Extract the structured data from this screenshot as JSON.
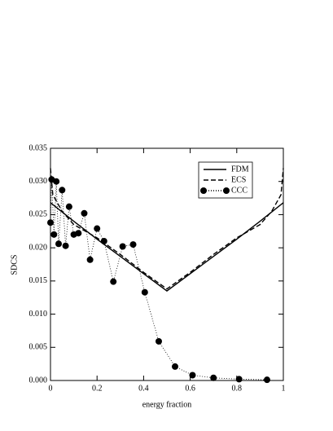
{
  "chart_data": {
    "type": "line",
    "xlabel": "energy fraction",
    "ylabel": "SDCS",
    "xlim": [
      0,
      1
    ],
    "ylim": [
      0,
      0.035
    ],
    "xticks": [
      0,
      {
        "value": 0.2,
        "label": "0.2"
      },
      {
        "value": 0.4,
        "label": "0.4"
      },
      {
        "value": 0.6,
        "label": "0.6"
      },
      {
        "value": 0.8,
        "label": "0.8"
      },
      1
    ],
    "yticks": [
      {
        "value": 0,
        "label": "0.000"
      },
      {
        "value": 0.005,
        "label": "0.005"
      },
      {
        "value": 0.01,
        "label": "0.010"
      },
      {
        "value": 0.015,
        "label": "0.015"
      },
      {
        "value": 0.02,
        "label": "0.020"
      },
      {
        "value": 0.025,
        "label": "0.025"
      },
      {
        "value": 0.03,
        "label": "0.030"
      },
      {
        "value": 0.035,
        "label": "0.035"
      }
    ],
    "legend": "upper right",
    "series": [
      {
        "name": "FDM",
        "color": "#000000",
        "style": "solid",
        "x": [
          0,
          0.1,
          0.2,
          0.3,
          0.4,
          0.5,
          0.6,
          0.7,
          0.8,
          0.9,
          1
        ],
        "values": [
          0.0268,
          0.024,
          0.0213,
          0.0187,
          0.0161,
          0.0135,
          0.0161,
          0.0187,
          0.0213,
          0.024,
          0.0268
        ]
      },
      {
        "name": "ECS",
        "color": "#000000",
        "style": "dashed",
        "x": [
          0,
          0.01,
          0.05,
          0.1,
          0.2,
          0.3,
          0.4,
          0.5,
          0.6,
          0.7,
          0.8,
          0.9,
          0.95,
          0.99,
          1
        ],
        "values": [
          0.032,
          0.028,
          0.0255,
          0.0235,
          0.0215,
          0.019,
          0.0163,
          0.0138,
          0.0163,
          0.019,
          0.0215,
          0.0235,
          0.0255,
          0.028,
          0.032
        ]
      },
      {
        "name": "CCC",
        "color": "#000000",
        "style": "dotted-markers",
        "x": [
          0,
          0.005,
          0.015,
          0.025,
          0.035,
          0.05,
          0.065,
          0.08,
          0.1,
          0.12,
          0.145,
          0.17,
          0.2,
          0.23,
          0.27,
          0.31,
          0.355,
          0.405,
          0.465,
          0.535,
          0.61,
          0.7,
          0.81,
          0.93
        ],
        "values": [
          0.0238,
          0.0303,
          0.022,
          0.03,
          0.0206,
          0.0287,
          0.0203,
          0.0262,
          0.022,
          0.0222,
          0.0252,
          0.0182,
          0.0229,
          0.021,
          0.0149,
          0.0202,
          0.0205,
          0.0133,
          0.0059,
          0.0021,
          0.0008,
          0.0004,
          0.0002,
          0.0001
        ]
      }
    ]
  }
}
